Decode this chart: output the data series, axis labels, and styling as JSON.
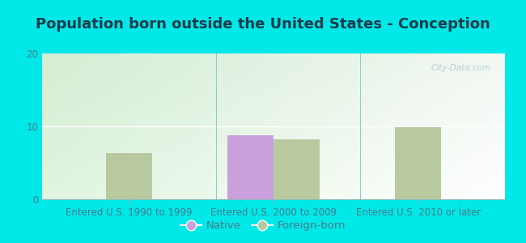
{
  "title": "Population born outside the United States - Conception",
  "groups": [
    "Entered U.S. 1990 to 1999",
    "Entered U.S. 2000 to 2009",
    "Entered U.S. 2010 or later"
  ],
  "native_values": [
    null,
    8.8,
    null
  ],
  "foreign_values": [
    6.3,
    8.2,
    9.9
  ],
  "native_color": "#c9a0dc",
  "foreign_color": "#b8c9a0",
  "ylim": [
    0,
    20
  ],
  "yticks": [
    0,
    10,
    20
  ],
  "bar_width": 0.32,
  "background_color": "#00e8e8",
  "title_fontsize": 13,
  "tick_fontsize": 8.5,
  "legend_fontsize": 9.5,
  "title_color": "#1a3a4a",
  "tick_color": "#4a7a8a",
  "watermark": "City-Data.com"
}
